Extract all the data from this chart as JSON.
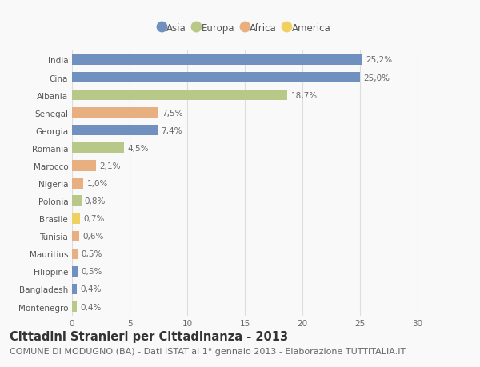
{
  "countries": [
    "India",
    "Cina",
    "Albania",
    "Senegal",
    "Georgia",
    "Romania",
    "Marocco",
    "Nigeria",
    "Polonia",
    "Brasile",
    "Tunisia",
    "Mauritius",
    "Filippine",
    "Bangladesh",
    "Montenegro"
  ],
  "values": [
    25.2,
    25.0,
    18.7,
    7.5,
    7.4,
    4.5,
    2.1,
    1.0,
    0.8,
    0.7,
    0.6,
    0.5,
    0.5,
    0.4,
    0.4
  ],
  "labels": [
    "25,2%",
    "25,0%",
    "18,7%",
    "7,5%",
    "7,4%",
    "4,5%",
    "2,1%",
    "1,0%",
    "0,8%",
    "0,7%",
    "0,6%",
    "0,5%",
    "0,5%",
    "0,4%",
    "0,4%"
  ],
  "continents": [
    "Asia",
    "Asia",
    "Europa",
    "Africa",
    "Asia",
    "Europa",
    "Africa",
    "Africa",
    "Europa",
    "America",
    "Africa",
    "Africa",
    "Asia",
    "Asia",
    "Europa"
  ],
  "continent_colors": {
    "Asia": "#7090c0",
    "Europa": "#b8c888",
    "Africa": "#e8b080",
    "America": "#f0d060"
  },
  "legend_order": [
    "Asia",
    "Europa",
    "Africa",
    "America"
  ],
  "xlim": [
    0,
    30
  ],
  "xticks": [
    0,
    5,
    10,
    15,
    20,
    25,
    30
  ],
  "title": "Cittadini Stranieri per Cittadinanza - 2013",
  "subtitle": "COMUNE DI MODUGNO (BA) - Dati ISTAT al 1° gennaio 2013 - Elaborazione TUTTITALIA.IT",
  "background_color": "#f9f9f9",
  "grid_color": "#dddddd",
  "bar_height": 0.6,
  "title_fontsize": 10.5,
  "subtitle_fontsize": 8,
  "label_fontsize": 7.5,
  "tick_fontsize": 7.5,
  "legend_fontsize": 8.5
}
